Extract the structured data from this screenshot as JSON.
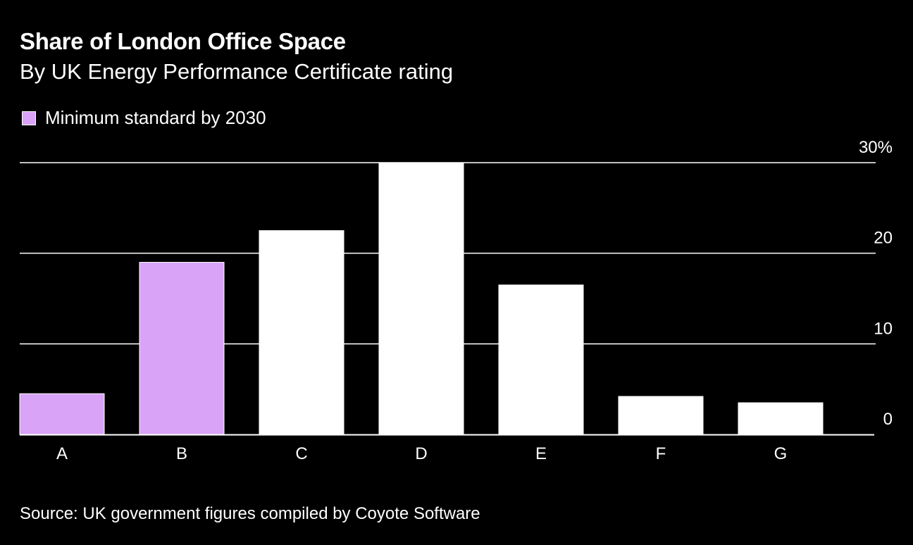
{
  "title": "Share of London Office Space",
  "subtitle": "By UK Energy Performance Certificate rating",
  "legend": {
    "label": "Minimum standard by 2030",
    "color": "#d9a3f8"
  },
  "source": "Source: UK government figures compiled by Coyote Software",
  "colors": {
    "background": "#000000",
    "highlight": "#d9a3f8",
    "default": "#ffffff",
    "grid": "#ffffff"
  },
  "chart_data": {
    "type": "bar",
    "categories": [
      "A",
      "B",
      "C",
      "D",
      "E",
      "F",
      "G"
    ],
    "values": [
      4.5,
      19,
      22.5,
      30,
      16.5,
      4.2,
      3.5
    ],
    "highlighted": [
      true,
      true,
      false,
      false,
      false,
      false,
      false
    ],
    "ylim": [
      0,
      30
    ],
    "yticks": [
      0,
      10,
      20,
      30
    ],
    "ytick_labels": [
      "0",
      "10",
      "20",
      "30%"
    ],
    "xlabel": "",
    "ylabel": "",
    "grid": true
  }
}
